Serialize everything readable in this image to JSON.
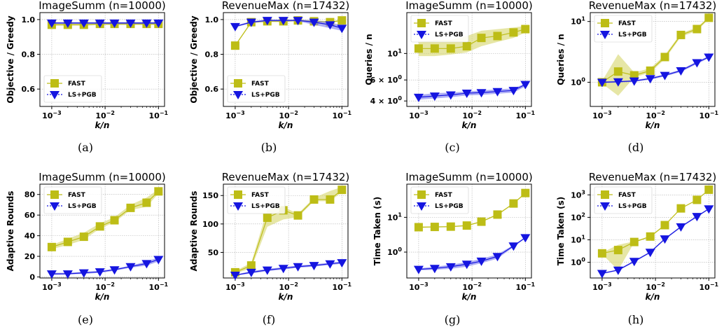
{
  "figure": {
    "captions": [
      "(a)",
      "(b)",
      "(c)",
      "(d)",
      "(e)",
      "(f)",
      "(g)",
      "(h)"
    ]
  },
  "colors": {
    "fast": "#bdbd16",
    "fast_band": "#d6d66a",
    "lspgb": "#1515e0",
    "lspgb_band": "#7a7aef"
  },
  "chart_data": [
    {
      "type": "line",
      "title": "ImageSumm (n=10000)",
      "xlabel": "k/n",
      "ylabel": "Objective / Greedy",
      "xscale": "log",
      "yscale": "linear",
      "xlim": [
        0.0006,
        0.13
      ],
      "ylim": [
        0.5,
        1.04
      ],
      "yticks": [
        0.6,
        0.8,
        1.0
      ],
      "ytick_labels": [
        "0.6",
        "0.8",
        "1.0"
      ],
      "grid": true,
      "legend": "lower-left",
      "x": [
        0.001,
        0.002,
        0.004,
        0.008,
        0.015,
        0.03,
        0.06,
        0.1
      ],
      "series": [
        {
          "name": "FAST",
          "marker": "square",
          "values": [
            0.97,
            0.97,
            0.97,
            0.975,
            0.975,
            0.975,
            0.975,
            0.975
          ],
          "band_low": [
            0.965,
            0.965,
            0.965,
            0.968,
            0.968,
            0.968,
            0.968,
            0.968
          ],
          "band_high": [
            0.978,
            0.978,
            0.978,
            0.98,
            0.98,
            0.98,
            0.98,
            0.98
          ]
        },
        {
          "name": "LS+PGB",
          "marker": "triangle",
          "values": [
            0.98,
            0.98,
            0.98,
            0.98,
            0.98,
            0.98,
            0.98,
            0.98
          ],
          "band_low": [
            0.975,
            0.975,
            0.975,
            0.975,
            0.975,
            0.975,
            0.975,
            0.975
          ],
          "band_high": [
            0.985,
            0.985,
            0.985,
            0.985,
            0.985,
            0.985,
            0.985,
            0.985
          ]
        }
      ]
    },
    {
      "type": "line",
      "title": "RevenueMax (n=17432)",
      "xlabel": "k/n",
      "ylabel": "Objective / Greedy",
      "xscale": "log",
      "yscale": "linear",
      "xlim": [
        0.0006,
        0.13
      ],
      "ylim": [
        0.5,
        1.04
      ],
      "yticks": [
        0.6,
        0.8,
        1.0
      ],
      "ytick_labels": [
        "0.6",
        "0.8",
        "1.0"
      ],
      "grid": true,
      "legend": "lower-left",
      "x": [
        0.001,
        0.002,
        0.004,
        0.008,
        0.015,
        0.03,
        0.06,
        0.1
      ],
      "series": [
        {
          "name": "FAST",
          "marker": "square",
          "values": [
            0.85,
            0.985,
            0.99,
            0.99,
            0.995,
            0.99,
            0.985,
            0.995
          ],
          "band_low": [
            0.845,
            0.98,
            0.985,
            0.985,
            0.99,
            0.985,
            0.98,
            0.99
          ],
          "band_high": [
            0.855,
            0.99,
            0.995,
            0.995,
            1.0,
            0.995,
            0.99,
            1.0
          ]
        },
        {
          "name": "LS+PGB",
          "marker": "triangle",
          "values": [
            0.96,
            0.985,
            0.995,
            0.995,
            0.995,
            0.985,
            0.97,
            0.95
          ],
          "band_low": [
            0.955,
            0.98,
            0.99,
            0.99,
            0.99,
            0.97,
            0.95,
            0.935
          ],
          "band_high": [
            0.965,
            0.99,
            1.0,
            1.0,
            1.0,
            0.995,
            0.985,
            0.965
          ]
        }
      ]
    },
    {
      "type": "line",
      "title": "ImageSumm (n=10000)",
      "xlabel": "k/n",
      "ylabel": "Queries / n",
      "xscale": "log",
      "yscale": "log",
      "xlim": [
        0.0006,
        0.13
      ],
      "ylim": [
        3.6,
        22
      ],
      "yticks": [
        4,
        6,
        10
      ],
      "ytick_labels": [
        "4 × 10⁰",
        "6 × 10⁰",
        "10¹"
      ],
      "grid": true,
      "legend": "upper-left",
      "x": [
        0.001,
        0.002,
        0.004,
        0.008,
        0.015,
        0.03,
        0.06,
        0.1
      ],
      "series": [
        {
          "name": "FAST",
          "marker": "square",
          "values": [
            11,
            11,
            11,
            11.5,
            13.5,
            14,
            15,
            16
          ],
          "band_low": [
            9.5,
            9.5,
            9.8,
            10.2,
            11.5,
            12.5,
            13.5,
            15
          ],
          "band_high": [
            12.5,
            13,
            13,
            14,
            15.5,
            16,
            16.5,
            17
          ]
        },
        {
          "name": "LS+PGB",
          "marker": "triangle",
          "values": [
            4.3,
            4.4,
            4.5,
            4.65,
            4.7,
            4.8,
            4.9,
            5.5
          ],
          "band_low": [
            4.1,
            4.2,
            4.3,
            4.45,
            4.5,
            4.6,
            4.7,
            5.3
          ],
          "band_high": [
            4.5,
            4.65,
            4.7,
            4.8,
            4.9,
            5.0,
            5.1,
            5.6
          ]
        }
      ]
    },
    {
      "type": "line",
      "title": "RevenueMax (n=17432)",
      "xlabel": "k/n",
      "ylabel": "Queries / n",
      "xscale": "log",
      "yscale": "log",
      "xlim": [
        0.0006,
        0.13
      ],
      "ylim": [
        0.4,
        14
      ],
      "yticks": [
        1,
        10
      ],
      "ytick_labels": [
        "10⁰",
        "10¹"
      ],
      "grid": true,
      "legend": "upper-left",
      "x": [
        0.001,
        0.002,
        0.004,
        0.008,
        0.015,
        0.03,
        0.06,
        0.1
      ],
      "series": [
        {
          "name": "FAST",
          "marker": "square",
          "values": [
            1.0,
            1.5,
            1.3,
            1.55,
            2.6,
            6.0,
            7.5,
            11.5
          ],
          "band_low": [
            0.95,
            0.6,
            1.2,
            1.45,
            2.4,
            5.6,
            7.0,
            11.0
          ],
          "band_high": [
            1.05,
            2.9,
            1.45,
            1.7,
            2.8,
            6.4,
            8.0,
            12.0
          ]
        },
        {
          "name": "LS+PGB",
          "marker": "triangle",
          "values": [
            1.0,
            1.02,
            1.05,
            1.15,
            1.3,
            1.55,
            2.1,
            2.6
          ],
          "band_low": [
            0.97,
            0.99,
            1.02,
            1.1,
            1.25,
            1.48,
            2.0,
            2.5
          ],
          "band_high": [
            1.03,
            1.05,
            1.08,
            1.2,
            1.35,
            1.62,
            2.2,
            2.7
          ]
        }
      ]
    },
    {
      "type": "line",
      "title": "ImageSumm (n=10000)",
      "xlabel": "k/n",
      "ylabel": "Adaptive Rounds",
      "xscale": "log",
      "yscale": "linear",
      "xlim": [
        0.0006,
        0.13
      ],
      "ylim": [
        -1,
        90
      ],
      "yticks": [
        0,
        20,
        40,
        60,
        80
      ],
      "ytick_labels": [
        "0",
        "20",
        "40",
        "60",
        "80"
      ],
      "grid": true,
      "legend": "upper-left",
      "x": [
        0.001,
        0.002,
        0.004,
        0.008,
        0.015,
        0.03,
        0.06,
        0.1
      ],
      "series": [
        {
          "name": "FAST",
          "marker": "square",
          "values": [
            29,
            34,
            39,
            49,
            55,
            67,
            72,
            83
          ],
          "band_low": [
            27,
            31,
            36,
            47,
            53,
            65,
            68,
            81
          ],
          "band_high": [
            31,
            37,
            43,
            52,
            58,
            70,
            77,
            85
          ]
        },
        {
          "name": "LS+PGB",
          "marker": "triangle",
          "values": [
            3,
            3,
            4,
            5,
            7,
            10,
            13,
            17
          ],
          "band_low": [
            2,
            2.5,
            3,
            4,
            6,
            9,
            11,
            15
          ],
          "band_high": [
            4,
            4,
            5,
            6,
            8,
            11,
            15,
            19
          ]
        }
      ]
    },
    {
      "type": "line",
      "title": "RevenueMax (n=17432)",
      "xlabel": "k/n",
      "ylabel": "Adaptive Rounds",
      "xscale": "log",
      "yscale": "linear",
      "xlim": [
        0.0006,
        0.13
      ],
      "ylim": [
        5,
        170
      ],
      "yticks": [
        50,
        100,
        150
      ],
      "ytick_labels": [
        "50",
        "100",
        "150"
      ],
      "grid": true,
      "legend": "upper-left",
      "x": [
        0.001,
        0.002,
        0.004,
        0.008,
        0.015,
        0.03,
        0.06,
        0.1
      ],
      "series": [
        {
          "name": "FAST",
          "marker": "square",
          "values": [
            15,
            27,
            111,
            124,
            115,
            143,
            143,
            160
          ],
          "band_low": [
            13,
            22,
            95,
            108,
            112,
            140,
            140,
            156
          ],
          "band_high": [
            17,
            32,
            125,
            130,
            118,
            146,
            158,
            165
          ]
        },
        {
          "name": "LS+PGB",
          "marker": "triangle",
          "values": [
            10,
            15,
            19,
            22,
            25,
            27,
            30,
            32
          ],
          "band_low": [
            9,
            13,
            17,
            20,
            23,
            25,
            28,
            30
          ],
          "band_high": [
            11,
            17,
            21,
            24,
            27,
            29,
            32,
            34
          ]
        }
      ]
    },
    {
      "type": "line",
      "title": "ImageSumm (n=10000)",
      "xlabel": "k/n",
      "ylabel": "Time Taken (s)",
      "xscale": "log",
      "yscale": "log",
      "xlim": [
        0.0006,
        0.13
      ],
      "ylim": [
        0.18,
        90
      ],
      "yticks": [
        1,
        10
      ],
      "ytick_labels": [
        "10⁰",
        "10¹"
      ],
      "grid": true,
      "legend": "upper-left",
      "x": [
        0.001,
        0.002,
        0.004,
        0.008,
        0.015,
        0.03,
        0.06,
        0.1
      ],
      "series": [
        {
          "name": "FAST",
          "marker": "square",
          "values": [
            5.2,
            5.3,
            5.4,
            5.8,
            7.5,
            12,
            25,
            50
          ],
          "band_low": [
            5.0,
            5.1,
            5.2,
            5.6,
            7.2,
            11.5,
            24,
            48
          ],
          "band_high": [
            5.4,
            5.5,
            5.6,
            6.0,
            7.8,
            12.5,
            26,
            52
          ]
        },
        {
          "name": "LS+PGB",
          "marker": "triangle",
          "values": [
            0.32,
            0.34,
            0.38,
            0.45,
            0.55,
            0.75,
            1.5,
            2.6
          ],
          "band_low": [
            0.3,
            0.31,
            0.33,
            0.38,
            0.48,
            0.65,
            1.4,
            2.5
          ],
          "band_high": [
            0.34,
            0.38,
            0.43,
            0.52,
            0.64,
            0.86,
            1.6,
            2.7
          ]
        }
      ]
    },
    {
      "type": "line",
      "title": "RevenueMax (n=17432)",
      "xlabel": "k/n",
      "ylabel": "Time Taken (s)",
      "xscale": "log",
      "yscale": "log",
      "xlim": [
        0.0006,
        0.13
      ],
      "ylim": [
        0.2,
        3000
      ],
      "yticks": [
        1,
        10,
        100,
        1000
      ],
      "ytick_labels": [
        "10⁰",
        "10¹",
        "10²",
        "10³"
      ],
      "grid": true,
      "legend": "upper-left",
      "x": [
        0.001,
        0.002,
        0.004,
        0.008,
        0.015,
        0.03,
        0.06,
        0.1
      ],
      "series": [
        {
          "name": "FAST",
          "marker": "square",
          "values": [
            2.5,
            3.5,
            8,
            14,
            45,
            250,
            600,
            1700
          ],
          "band_low": [
            2.3,
            0.45,
            7.5,
            13,
            42,
            240,
            580,
            1650
          ],
          "band_high": [
            2.7,
            6,
            8.5,
            15,
            48,
            260,
            620,
            1750
          ]
        },
        {
          "name": "LS+PGB",
          "marker": "triangle",
          "values": [
            0.32,
            0.45,
            1.1,
            2.8,
            11,
            38,
            110,
            240
          ],
          "band_low": [
            0.3,
            0.42,
            1.0,
            2.6,
            10,
            35,
            100,
            225
          ],
          "band_high": [
            0.34,
            0.48,
            1.2,
            3.0,
            12,
            41,
            120,
            255
          ]
        }
      ]
    }
  ]
}
